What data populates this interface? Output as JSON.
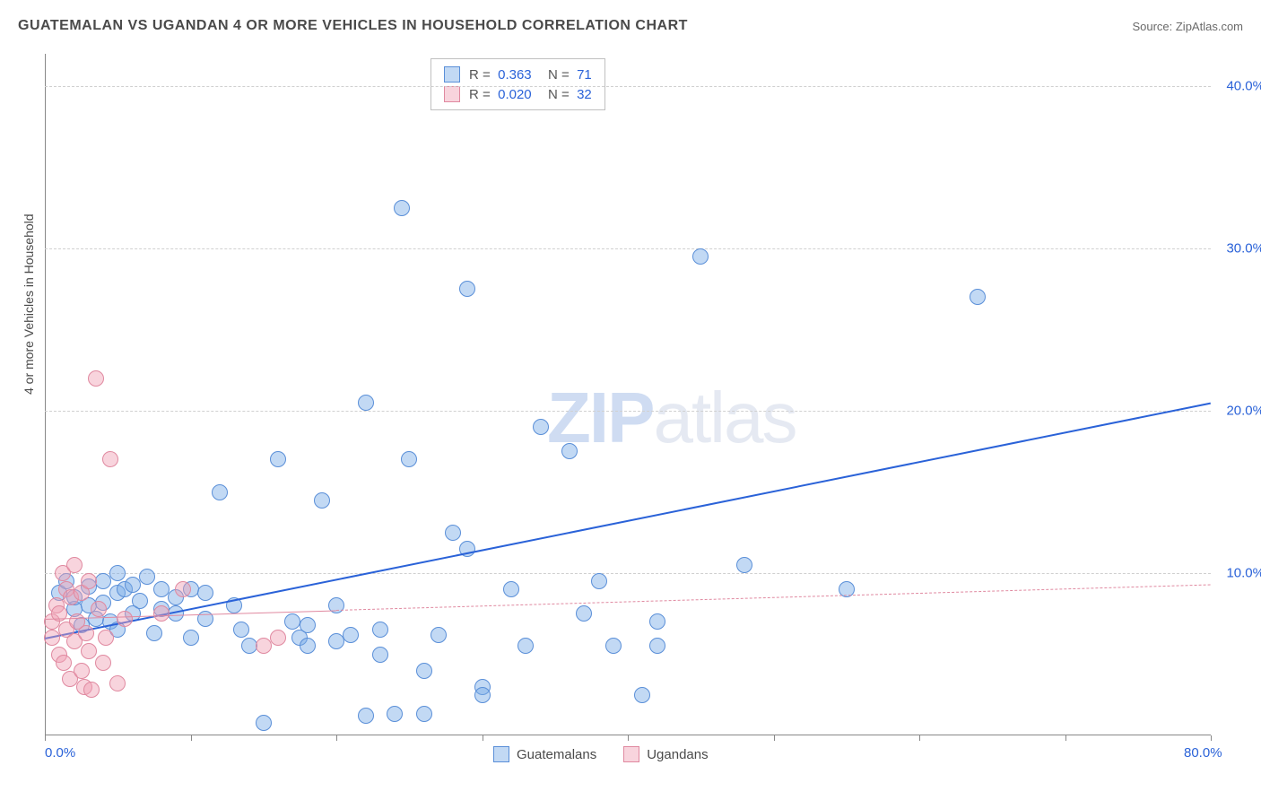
{
  "title": "GUATEMALAN VS UGANDAN 4 OR MORE VEHICLES IN HOUSEHOLD CORRELATION CHART",
  "source_label": "Source: ZipAtlas.com",
  "ylabel": "4 or more Vehicles in Household",
  "watermark_a": "ZIP",
  "watermark_b": "atlas",
  "chart": {
    "type": "scatter",
    "xlim": [
      0,
      80
    ],
    "ylim": [
      0,
      42
    ],
    "x_ticks": [
      0,
      10,
      20,
      30,
      40,
      50,
      60,
      70,
      80
    ],
    "x_tick_labels": {
      "0": "0.0%",
      "80": "80.0%"
    },
    "y_gridlines": [
      10,
      20,
      30,
      40
    ],
    "y_tick_labels": {
      "10": "10.0%",
      "20": "20.0%",
      "30": "30.0%",
      "40": "40.0%"
    },
    "gridline_color": "#d0d0d0",
    "background_color": "#ffffff",
    "marker_radius": 9,
    "marker_border_width": 1.2,
    "series": [
      {
        "name": "Guatemalans",
        "fill_color": "rgba(120,170,230,0.45)",
        "border_color": "#5a8fd8",
        "R_label": "R =",
        "R": "0.363",
        "N_label": "N =",
        "N": "71",
        "trend": {
          "x1": 0,
          "y1": 6.0,
          "x2": 80,
          "y2": 20.5,
          "solid_until_x": 80,
          "color": "#2a62d8",
          "width": 2.5
        },
        "points": [
          [
            1,
            8.8
          ],
          [
            1.5,
            9.5
          ],
          [
            2,
            7.8
          ],
          [
            2,
            8.5
          ],
          [
            2.5,
            6.8
          ],
          [
            3,
            9.2
          ],
          [
            3,
            8.0
          ],
          [
            3.5,
            7.2
          ],
          [
            4,
            9.5
          ],
          [
            4,
            8.2
          ],
          [
            4.5,
            7.0
          ],
          [
            5,
            8.8
          ],
          [
            5,
            6.5
          ],
          [
            5.5,
            9.0
          ],
          [
            6,
            7.5
          ],
          [
            6.5,
            8.3
          ],
          [
            7,
            9.8
          ],
          [
            7.5,
            6.3
          ],
          [
            8,
            7.8
          ],
          [
            9,
            8.5
          ],
          [
            10,
            9.0
          ],
          [
            10,
            6.0
          ],
          [
            11,
            7.2
          ],
          [
            12,
            15.0
          ],
          [
            13,
            8.0
          ],
          [
            13.5,
            6.5
          ],
          [
            14,
            5.5
          ],
          [
            15,
            0.8
          ],
          [
            16,
            17.0
          ],
          [
            17,
            7.0
          ],
          [
            17.5,
            6.0
          ],
          [
            18,
            5.5
          ],
          [
            18,
            6.8
          ],
          [
            19,
            14.5
          ],
          [
            20,
            8.0
          ],
          [
            20,
            5.8
          ],
          [
            21,
            6.2
          ],
          [
            22,
            1.2
          ],
          [
            22,
            20.5
          ],
          [
            23,
            6.5
          ],
          [
            23,
            5.0
          ],
          [
            24,
            1.3
          ],
          [
            24.5,
            32.5
          ],
          [
            25,
            17.0
          ],
          [
            26,
            1.3
          ],
          [
            26,
            4.0
          ],
          [
            27,
            6.2
          ],
          [
            28,
            12.5
          ],
          [
            29,
            11.5
          ],
          [
            29,
            27.5
          ],
          [
            30,
            3.0
          ],
          [
            30,
            2.5
          ],
          [
            32,
            9.0
          ],
          [
            33,
            5.5
          ],
          [
            34,
            19.0
          ],
          [
            36,
            17.5
          ],
          [
            37,
            7.5
          ],
          [
            38,
            9.5
          ],
          [
            39,
            5.5
          ],
          [
            41,
            2.5
          ],
          [
            42,
            7.0
          ],
          [
            42,
            5.5
          ],
          [
            45,
            29.5
          ],
          [
            48,
            10.5
          ],
          [
            55,
            9.0
          ],
          [
            64,
            27.0
          ],
          [
            5,
            10
          ],
          [
            6,
            9.3
          ],
          [
            8,
            9.0
          ],
          [
            9,
            7.5
          ],
          [
            11,
            8.8
          ]
        ]
      },
      {
        "name": "Ugandans",
        "fill_color": "rgba(240,160,180,0.45)",
        "border_color": "#e089a0",
        "R_label": "R =",
        "R": "0.020",
        "N_label": "N =",
        "N": "32",
        "trend": {
          "x1": 0,
          "y1": 7.2,
          "x2": 80,
          "y2": 9.3,
          "solid_until_x": 20,
          "color": "#e089a0",
          "width": 1.8
        },
        "points": [
          [
            0.5,
            7.0
          ],
          [
            0.5,
            6.0
          ],
          [
            0.8,
            8.0
          ],
          [
            1,
            5.0
          ],
          [
            1,
            7.5
          ],
          [
            1.2,
            10.0
          ],
          [
            1.3,
            4.5
          ],
          [
            1.5,
            6.5
          ],
          [
            1.5,
            9.0
          ],
          [
            1.7,
            3.5
          ],
          [
            1.8,
            8.5
          ],
          [
            2,
            5.8
          ],
          [
            2,
            10.5
          ],
          [
            2.2,
            7.0
          ],
          [
            2.5,
            4.0
          ],
          [
            2.5,
            8.8
          ],
          [
            2.7,
            3.0
          ],
          [
            2.8,
            6.3
          ],
          [
            3,
            9.5
          ],
          [
            3,
            5.2
          ],
          [
            3.2,
            2.8
          ],
          [
            3.5,
            22.0
          ],
          [
            3.7,
            7.8
          ],
          [
            4,
            4.5
          ],
          [
            4.2,
            6.0
          ],
          [
            4.5,
            17.0
          ],
          [
            5,
            3.2
          ],
          [
            5.5,
            7.2
          ],
          [
            8,
            7.5
          ],
          [
            9.5,
            9.0
          ],
          [
            15,
            5.5
          ],
          [
            16,
            6.0
          ]
        ]
      }
    ]
  },
  "legend_bottom": [
    {
      "label": "Guatemalans",
      "fill": "rgba(120,170,230,0.45)",
      "border": "#5a8fd8"
    },
    {
      "label": "Ugandans",
      "fill": "rgba(240,160,180,0.45)",
      "border": "#e089a0"
    }
  ]
}
